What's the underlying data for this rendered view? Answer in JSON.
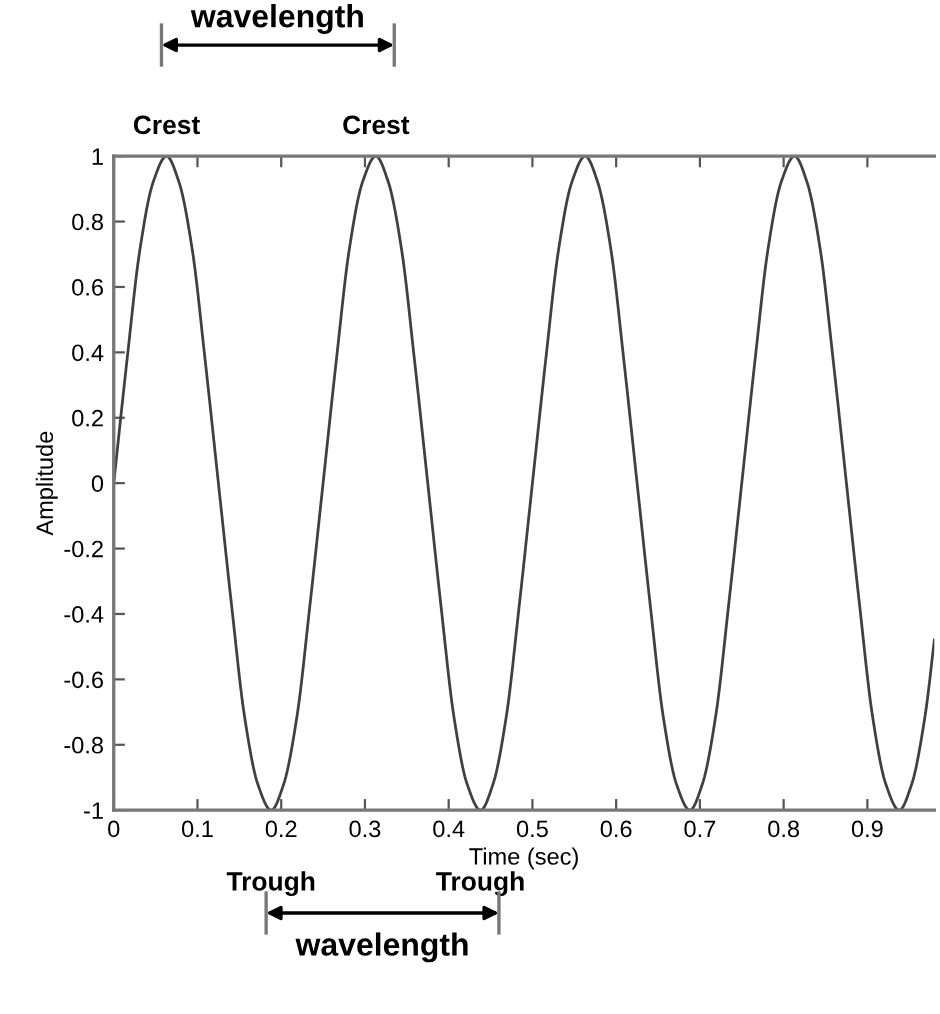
{
  "chart_data": {
    "type": "line",
    "xlabel": "Time (sec)",
    "ylabel": "Amplitude",
    "xlim": [
      0,
      0.98
    ],
    "ylim": [
      -1,
      1
    ],
    "xticks": [
      0,
      0.1,
      0.2,
      0.3,
      0.4,
      0.5,
      0.6,
      0.7,
      0.8,
      0.9
    ],
    "yticks": [
      -1,
      -0.8,
      -0.6,
      -0.4,
      -0.2,
      0,
      0.2,
      0.4,
      0.6,
      0.8,
      1
    ],
    "grid": false,
    "marker": "none",
    "line_style": "solid",
    "series": [
      {
        "color": "#404040",
        "x": [
          0,
          0.016,
          0.031,
          0.047,
          0.063,
          0.078,
          0.094,
          0.109,
          0.125,
          0.141,
          0.156,
          0.172,
          0.188,
          0.203,
          0.219,
          0.234,
          0.25,
          0.266,
          0.281,
          0.297,
          0.313,
          0.328,
          0.344,
          0.359,
          0.375,
          0.391,
          0.406,
          0.422,
          0.438,
          0.453,
          0.469,
          0.484,
          0.5,
          0.516,
          0.531,
          0.547,
          0.563,
          0.578,
          0.594,
          0.609,
          0.625,
          0.641,
          0.656,
          0.672,
          0.688,
          0.703,
          0.719,
          0.734,
          0.75,
          0.766,
          0.781,
          0.797,
          0.813,
          0.828,
          0.844,
          0.859,
          0.875,
          0.891,
          0.906,
          0.922,
          0.938,
          0.953,
          0.969,
          0.98
        ],
        "values": [
          0,
          0.38,
          0.71,
          0.92,
          1,
          0.92,
          0.71,
          0.38,
          0,
          -0.38,
          -0.71,
          -0.92,
          -1,
          -0.92,
          -0.71,
          -0.38,
          0,
          0.38,
          0.71,
          0.92,
          1,
          0.92,
          0.71,
          0.38,
          0,
          -0.38,
          -0.71,
          -0.92,
          -1,
          -0.92,
          -0.71,
          -0.38,
          0,
          0.38,
          0.71,
          0.92,
          1,
          0.92,
          0.71,
          0.38,
          0,
          -0.38,
          -0.71,
          -0.92,
          -1,
          -0.92,
          -0.71,
          -0.38,
          0,
          0.38,
          0.71,
          0.92,
          1,
          0.92,
          0.71,
          0.38,
          0,
          -0.38,
          -0.71,
          -0.92,
          -1,
          -0.92,
          -0.71,
          -0.48
        ]
      }
    ],
    "annotations": [
      "Crest",
      "Crest",
      "wavelength",
      "Trough",
      "Trough",
      "wavelength"
    ]
  }
}
